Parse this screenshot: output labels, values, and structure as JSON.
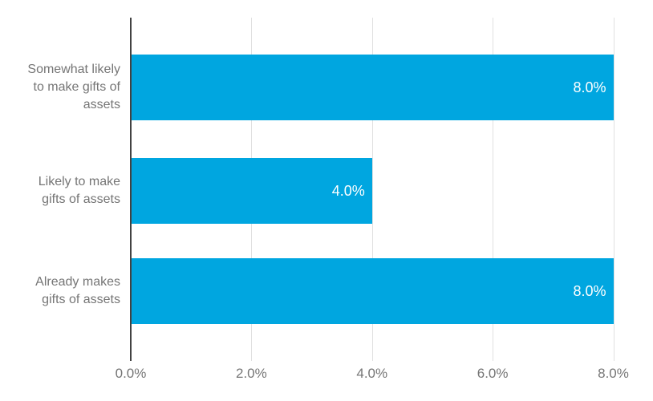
{
  "chart_data": {
    "type": "bar",
    "orientation": "horizontal",
    "categories": [
      "Somewhat likely to make gifts of assets",
      "Likely to make gifts of assets",
      "Already makes gifts of assets"
    ],
    "category_lines": [
      [
        "Somewhat likely",
        "to make gifts of",
        "assets"
      ],
      [
        "Likely to make",
        "gifts of assets"
      ],
      [
        "Already makes",
        "gifts of assets"
      ]
    ],
    "values": [
      8.0,
      4.0,
      8.0
    ],
    "value_labels": [
      "8.0%",
      "4.0%",
      "8.0%"
    ],
    "x_ticks": [
      0,
      2,
      4,
      6,
      8
    ],
    "x_tick_labels": [
      "0.0%",
      "2.0%",
      "4.0%",
      "6.0%",
      "8.0%"
    ],
    "xlim": [
      0,
      8
    ],
    "xlabel": "",
    "ylabel": "",
    "grid": true,
    "legend": false,
    "colors": {
      "bar": "#00A6E0",
      "value_label": "#FFFFFF",
      "axis_line": "#424242",
      "gridline": "#E0E0E0",
      "tick_label": "#757575",
      "category_label": "#757575",
      "background": "#FFFFFF"
    }
  }
}
